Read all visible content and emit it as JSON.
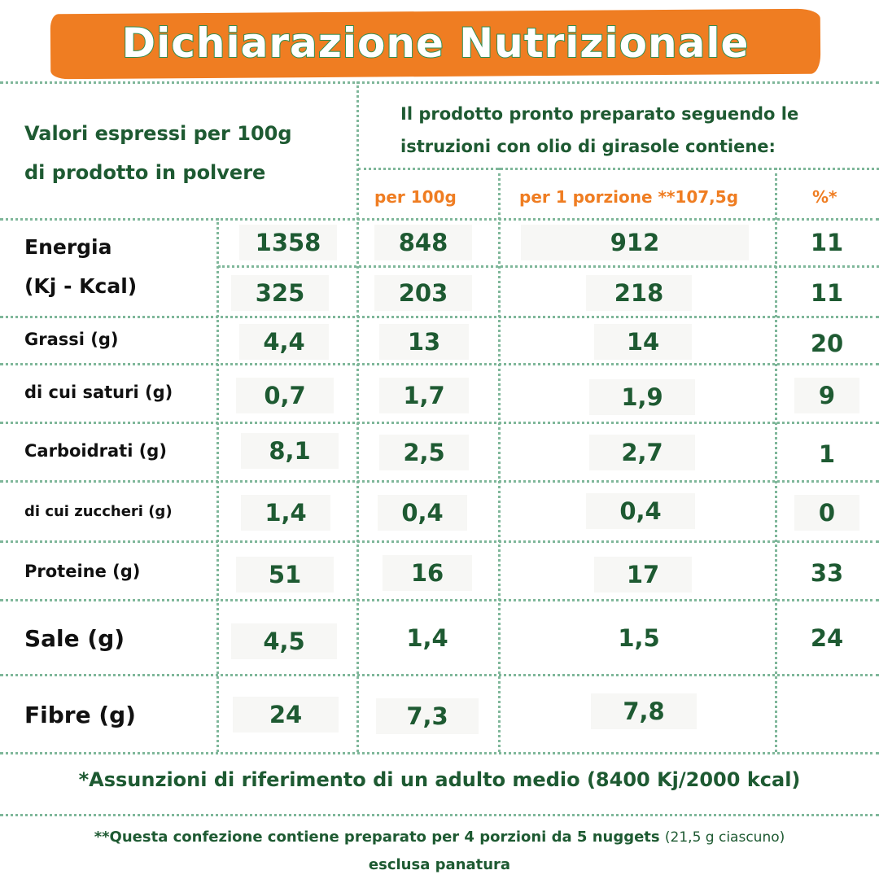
{
  "title": "Dichiarazione Nutrizionale",
  "header_left": [
    "Valori espressi per 100g",
    "di prodotto in polvere"
  ],
  "header_right": [
    "Il prodotto pronto preparato seguendo le",
    "istruzioni con olio di girasole contiene:"
  ],
  "column_headers": {
    "per100": "per 100g",
    "portion": "per 1 porzione **107,5g",
    "percent": "%*"
  },
  "energy_label": [
    "Energia",
    "(Kj - Kcal)"
  ],
  "rows": [
    {
      "label": "",
      "powder": "1358",
      "per100": "848",
      "portion": "912",
      "percent": "11"
    },
    {
      "label": "",
      "powder": "325",
      "per100": "203",
      "portion": "218",
      "percent": "11"
    },
    {
      "label": "Grassi (g)",
      "powder": "4,4",
      "per100": "13",
      "portion": "14",
      "percent": "20"
    },
    {
      "label": "di cui saturi (g)",
      "powder": "0,7",
      "per100": "1,7",
      "portion": "1,9",
      "percent": "9"
    },
    {
      "label": "Carboidrati (g)",
      "powder": "8,1",
      "per100": "2,5",
      "portion": "2,7",
      "percent": "1"
    },
    {
      "label": "di cui zuccheri (g)",
      "powder": "1,4",
      "per100": "0,4",
      "portion": "0,4",
      "percent": "0"
    },
    {
      "label": "Proteine (g)",
      "powder": "51",
      "per100": "16",
      "portion": "17",
      "percent": "33"
    },
    {
      "label": "Sale (g)",
      "powder": "4,5",
      "per100": "1,4",
      "portion": "1,5",
      "percent": "24"
    },
    {
      "label": "Fibre (g)",
      "powder": "24",
      "per100": "7,3",
      "portion": "7,8",
      "percent": ""
    }
  ],
  "footnote_1": "*Assunzioni di riferimento di un adulto medio (8400 Kj/2000 kcal)",
  "footnote_2": {
    "main": "**Questa confezione contiene preparato per 4 porzioni da 5 nuggets",
    "small": "(21,5 g ciascuno)",
    "second": "esclusa panatura"
  },
  "colors": {
    "banner": "#ef7d22",
    "title_outline": "#2f8f52",
    "values": "#1e5a32",
    "column_header": "#ef7d22",
    "grid": "#7fb79a"
  }
}
